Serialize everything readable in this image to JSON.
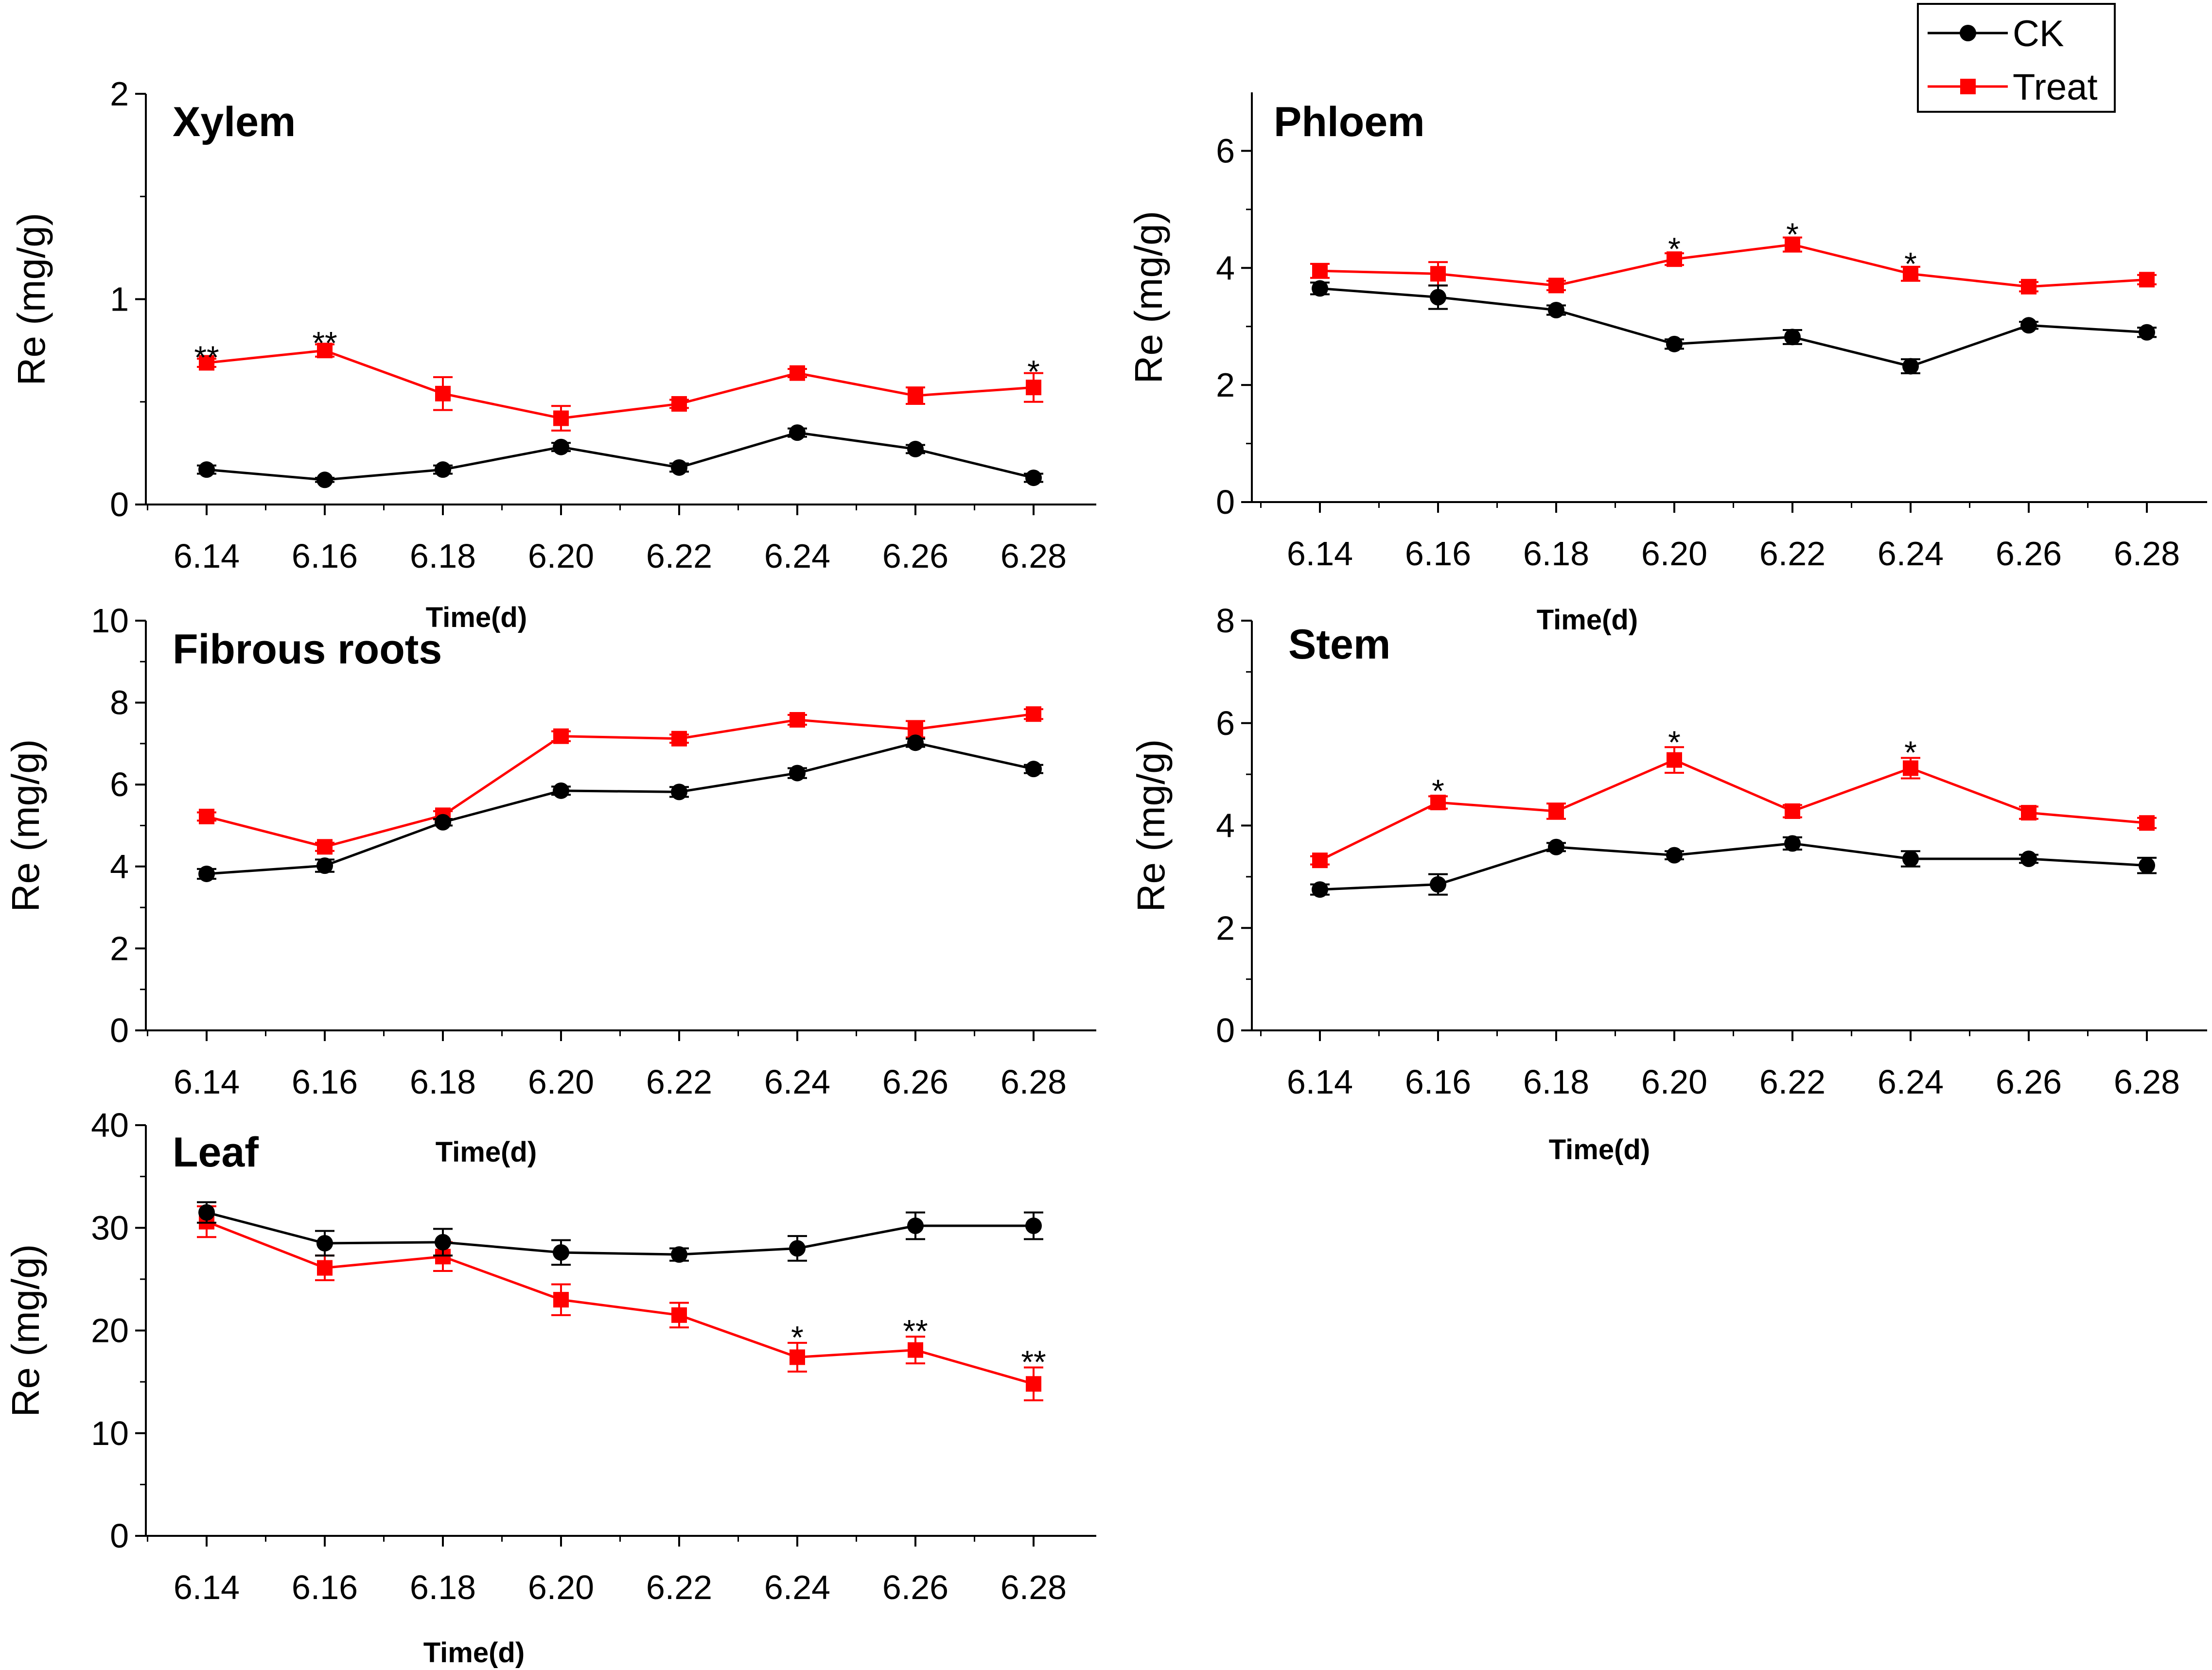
{
  "legend": {
    "items": [
      {
        "name": "CK",
        "color": "#000000",
        "marker": "circle"
      },
      {
        "name": "Treat",
        "color": "#ff0000",
        "marker": "square"
      }
    ]
  },
  "chart_data": [
    {
      "type": "line",
      "title": "Xylem",
      "xlabel": "Time(d)",
      "ylabel": "Re (mg/g)",
      "categories": [
        "6.14",
        "6.16",
        "6.18",
        "6.20",
        "6.22",
        "6.24",
        "6.26",
        "6.28"
      ],
      "ylim": [
        0,
        2
      ],
      "yticks": [
        0,
        1,
        2
      ],
      "series": [
        {
          "name": "CK",
          "color": "#000000",
          "marker": "circle",
          "values": [
            0.17,
            0.12,
            0.17,
            0.28,
            0.18,
            0.35,
            0.27,
            0.13
          ],
          "errors": [
            0.02,
            0.01,
            0.02,
            0.02,
            0.02,
            0.02,
            0.02,
            0.02
          ]
        },
        {
          "name": "Treat",
          "color": "#ff0000",
          "marker": "square",
          "values": [
            0.69,
            0.75,
            0.54,
            0.42,
            0.49,
            0.64,
            0.53,
            0.57
          ],
          "errors": [
            0.02,
            0.03,
            0.08,
            0.06,
            0.02,
            0.02,
            0.04,
            0.07
          ]
        }
      ],
      "significance": [
        {
          "category": "6.14",
          "mark": "**",
          "value": 0.71
        },
        {
          "category": "6.16",
          "mark": "**",
          "value": 0.78
        },
        {
          "category": "6.28",
          "mark": "*",
          "value": 0.64
        }
      ]
    },
    {
      "type": "line",
      "title": "Phloem",
      "xlabel": "Time(d)",
      "ylabel": "Re (mg/g)",
      "categories": [
        "6.14",
        "6.16",
        "6.18",
        "6.20",
        "6.22",
        "6.24",
        "6.26",
        "6.28"
      ],
      "ylim": [
        0,
        7
      ],
      "yticks": [
        0,
        2,
        4,
        6
      ],
      "series": [
        {
          "name": "CK",
          "color": "#000000",
          "marker": "circle",
          "values": [
            3.65,
            3.5,
            3.28,
            2.7,
            2.82,
            2.32,
            3.02,
            2.9
          ],
          "errors": [
            0.1,
            0.2,
            0.08,
            0.08,
            0.12,
            0.12,
            0.06,
            0.08
          ]
        },
        {
          "name": "Treat",
          "color": "#ff0000",
          "marker": "square",
          "values": [
            3.95,
            3.9,
            3.7,
            4.15,
            4.4,
            3.9,
            3.68,
            3.8
          ],
          "errors": [
            0.12,
            0.2,
            0.08,
            0.1,
            0.12,
            0.12,
            0.08,
            0.08
          ]
        }
      ],
      "significance": [
        {
          "category": "6.20",
          "mark": "*",
          "value": 4.3
        },
        {
          "category": "6.22",
          "mark": "*",
          "value": 4.55
        },
        {
          "category": "6.24",
          "mark": "*",
          "value": 4.05
        }
      ]
    },
    {
      "type": "line",
      "title": "Fibrous roots",
      "xlabel": "Time(d)",
      "ylabel": "Re (mg/g)",
      "categories": [
        "6.14",
        "6.16",
        "6.18",
        "6.20",
        "6.22",
        "6.24",
        "6.26",
        "6.28"
      ],
      "ylim": [
        0,
        10
      ],
      "yticks": [
        0,
        2,
        4,
        6,
        8,
        10
      ],
      "series": [
        {
          "name": "CK",
          "color": "#000000",
          "marker": "circle",
          "values": [
            3.82,
            4.02,
            5.08,
            5.85,
            5.82,
            6.28,
            7.02,
            6.38
          ],
          "errors": [
            0.12,
            0.15,
            0.08,
            0.1,
            0.12,
            0.12,
            0.1,
            0.1
          ]
        },
        {
          "name": "Treat",
          "color": "#ff0000",
          "marker": "square",
          "values": [
            5.22,
            4.48,
            5.25,
            7.18,
            7.12,
            7.58,
            7.35,
            7.72
          ],
          "errors": [
            0.1,
            0.1,
            0.1,
            0.12,
            0.1,
            0.12,
            0.2,
            0.12
          ]
        }
      ],
      "significance": []
    },
    {
      "type": "line",
      "title": "Stem",
      "xlabel": "Time(d)",
      "ylabel": "Re (mg/g)",
      "categories": [
        "6.14",
        "6.16",
        "6.18",
        "6.20",
        "6.22",
        "6.24",
        "6.26",
        "6.28"
      ],
      "ylim": [
        0,
        8
      ],
      "yticks": [
        0,
        2,
        4,
        6,
        8
      ],
      "series": [
        {
          "name": "CK",
          "color": "#000000",
          "marker": "circle",
          "values": [
            2.75,
            2.85,
            3.58,
            3.42,
            3.65,
            3.35,
            3.35,
            3.22
          ],
          "errors": [
            0.1,
            0.2,
            0.08,
            0.08,
            0.12,
            0.15,
            0.08,
            0.15
          ]
        },
        {
          "name": "Treat",
          "color": "#ff0000",
          "marker": "square",
          "values": [
            3.32,
            4.45,
            4.28,
            5.28,
            4.28,
            5.12,
            4.25,
            4.05
          ],
          "errors": [
            0.08,
            0.12,
            0.15,
            0.25,
            0.12,
            0.2,
            0.12,
            0.1
          ]
        }
      ],
      "significance": [
        {
          "category": "6.16",
          "mark": "*",
          "value": 4.65
        },
        {
          "category": "6.20",
          "mark": "*",
          "value": 5.6
        },
        {
          "category": "6.24",
          "mark": "*",
          "value": 5.4
        }
      ]
    },
    {
      "type": "line",
      "title": "Leaf",
      "xlabel": "Time(d)",
      "ylabel": "Re (mg/g)",
      "categories": [
        "6.14",
        "6.16",
        "6.18",
        "6.20",
        "6.22",
        "6.24",
        "6.26",
        "6.28"
      ],
      "ylim": [
        0,
        40
      ],
      "yticks": [
        0,
        10,
        20,
        30,
        40
      ],
      "series": [
        {
          "name": "CK",
          "color": "#000000",
          "marker": "circle",
          "values": [
            31.5,
            28.5,
            28.6,
            27.6,
            27.4,
            28.0,
            30.2,
            30.2
          ],
          "errors": [
            1.0,
            1.2,
            1.3,
            1.2,
            0.6,
            1.2,
            1.3,
            1.3
          ]
        },
        {
          "name": "Treat",
          "color": "#ff0000",
          "marker": "square",
          "values": [
            30.6,
            26.1,
            27.2,
            23.0,
            21.5,
            17.4,
            18.1,
            14.8
          ],
          "errors": [
            1.5,
            1.2,
            1.4,
            1.5,
            1.2,
            1.4,
            1.3,
            1.6
          ]
        }
      ],
      "significance": [
        {
          "category": "6.24",
          "mark": "*",
          "value": 19.2
        },
        {
          "category": "6.26",
          "mark": "**",
          "value": 19.8
        },
        {
          "category": "6.28",
          "mark": "**",
          "value": 16.8
        }
      ]
    }
  ]
}
